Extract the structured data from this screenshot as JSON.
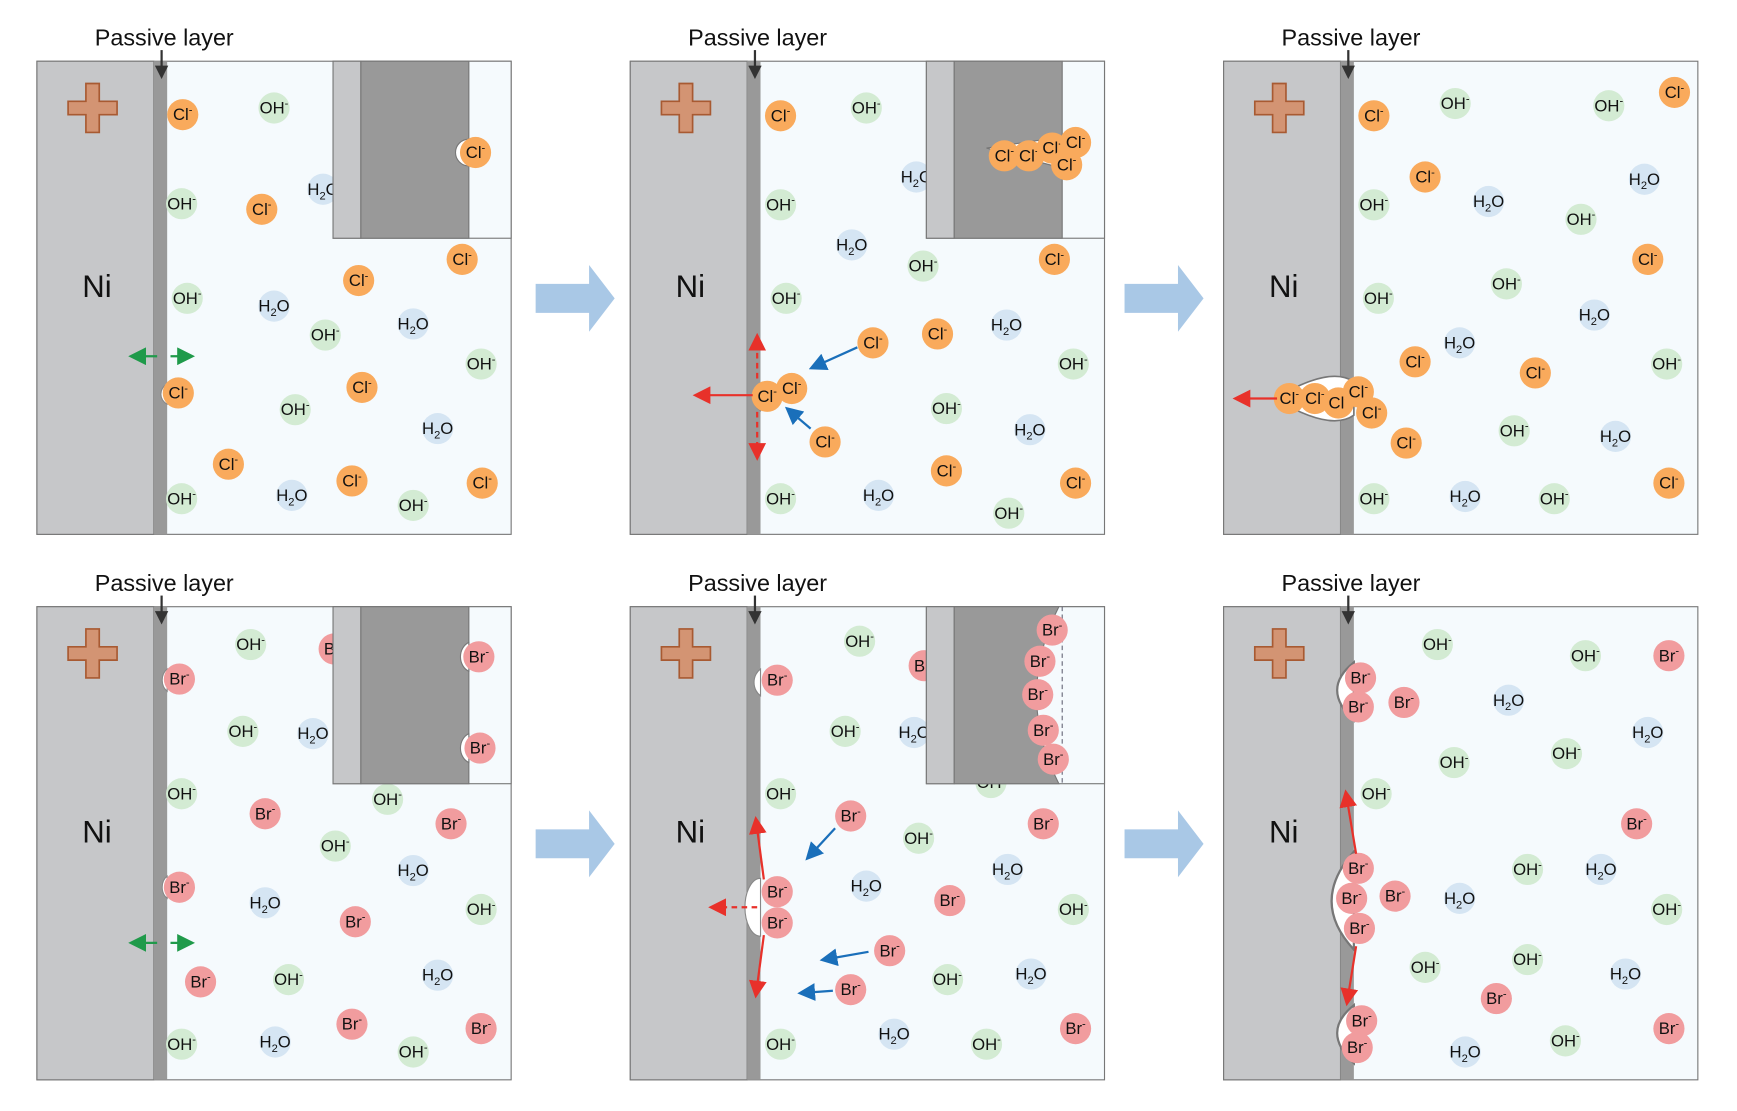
{
  "labels": {
    "passive_layer": "Passive layer",
    "metal": "Ni"
  },
  "ions": {
    "cl": {
      "base": "Cl",
      "sub": "",
      "sup": "-"
    },
    "br": {
      "base": "Br",
      "sub": "",
      "sup": "-"
    },
    "oh": {
      "base": "OH",
      "sub": "",
      "sup": "-"
    },
    "h2o": {
      "base": "H",
      "sub": "2",
      "sup": "",
      "tail": "O"
    }
  },
  "colors": {
    "cl": "#f9aa5c",
    "br": "#f19c9e",
    "oh": "#d3ebd3",
    "h2o": "#d5e5f3",
    "metal": "#c6c7c9",
    "passive_layer": "#999999",
    "solution": "#f5fafd",
    "anode_sign": "#d39473",
    "process_arrow": "#a9c8e6",
    "attack_arrow": "#e8312a",
    "migration_arrow": "#1a6fba",
    "exchange_arrow": "#1f9a4a"
  },
  "panels": [
    {
      "row": "chloride",
      "stage": 1
    },
    {
      "row": "chloride",
      "stage": 2
    },
    {
      "row": "chloride",
      "stage": 3
    },
    {
      "row": "bromide",
      "stage": 1
    },
    {
      "row": "bromide",
      "stage": 2
    },
    {
      "row": "bromide",
      "stage": 3
    }
  ]
}
